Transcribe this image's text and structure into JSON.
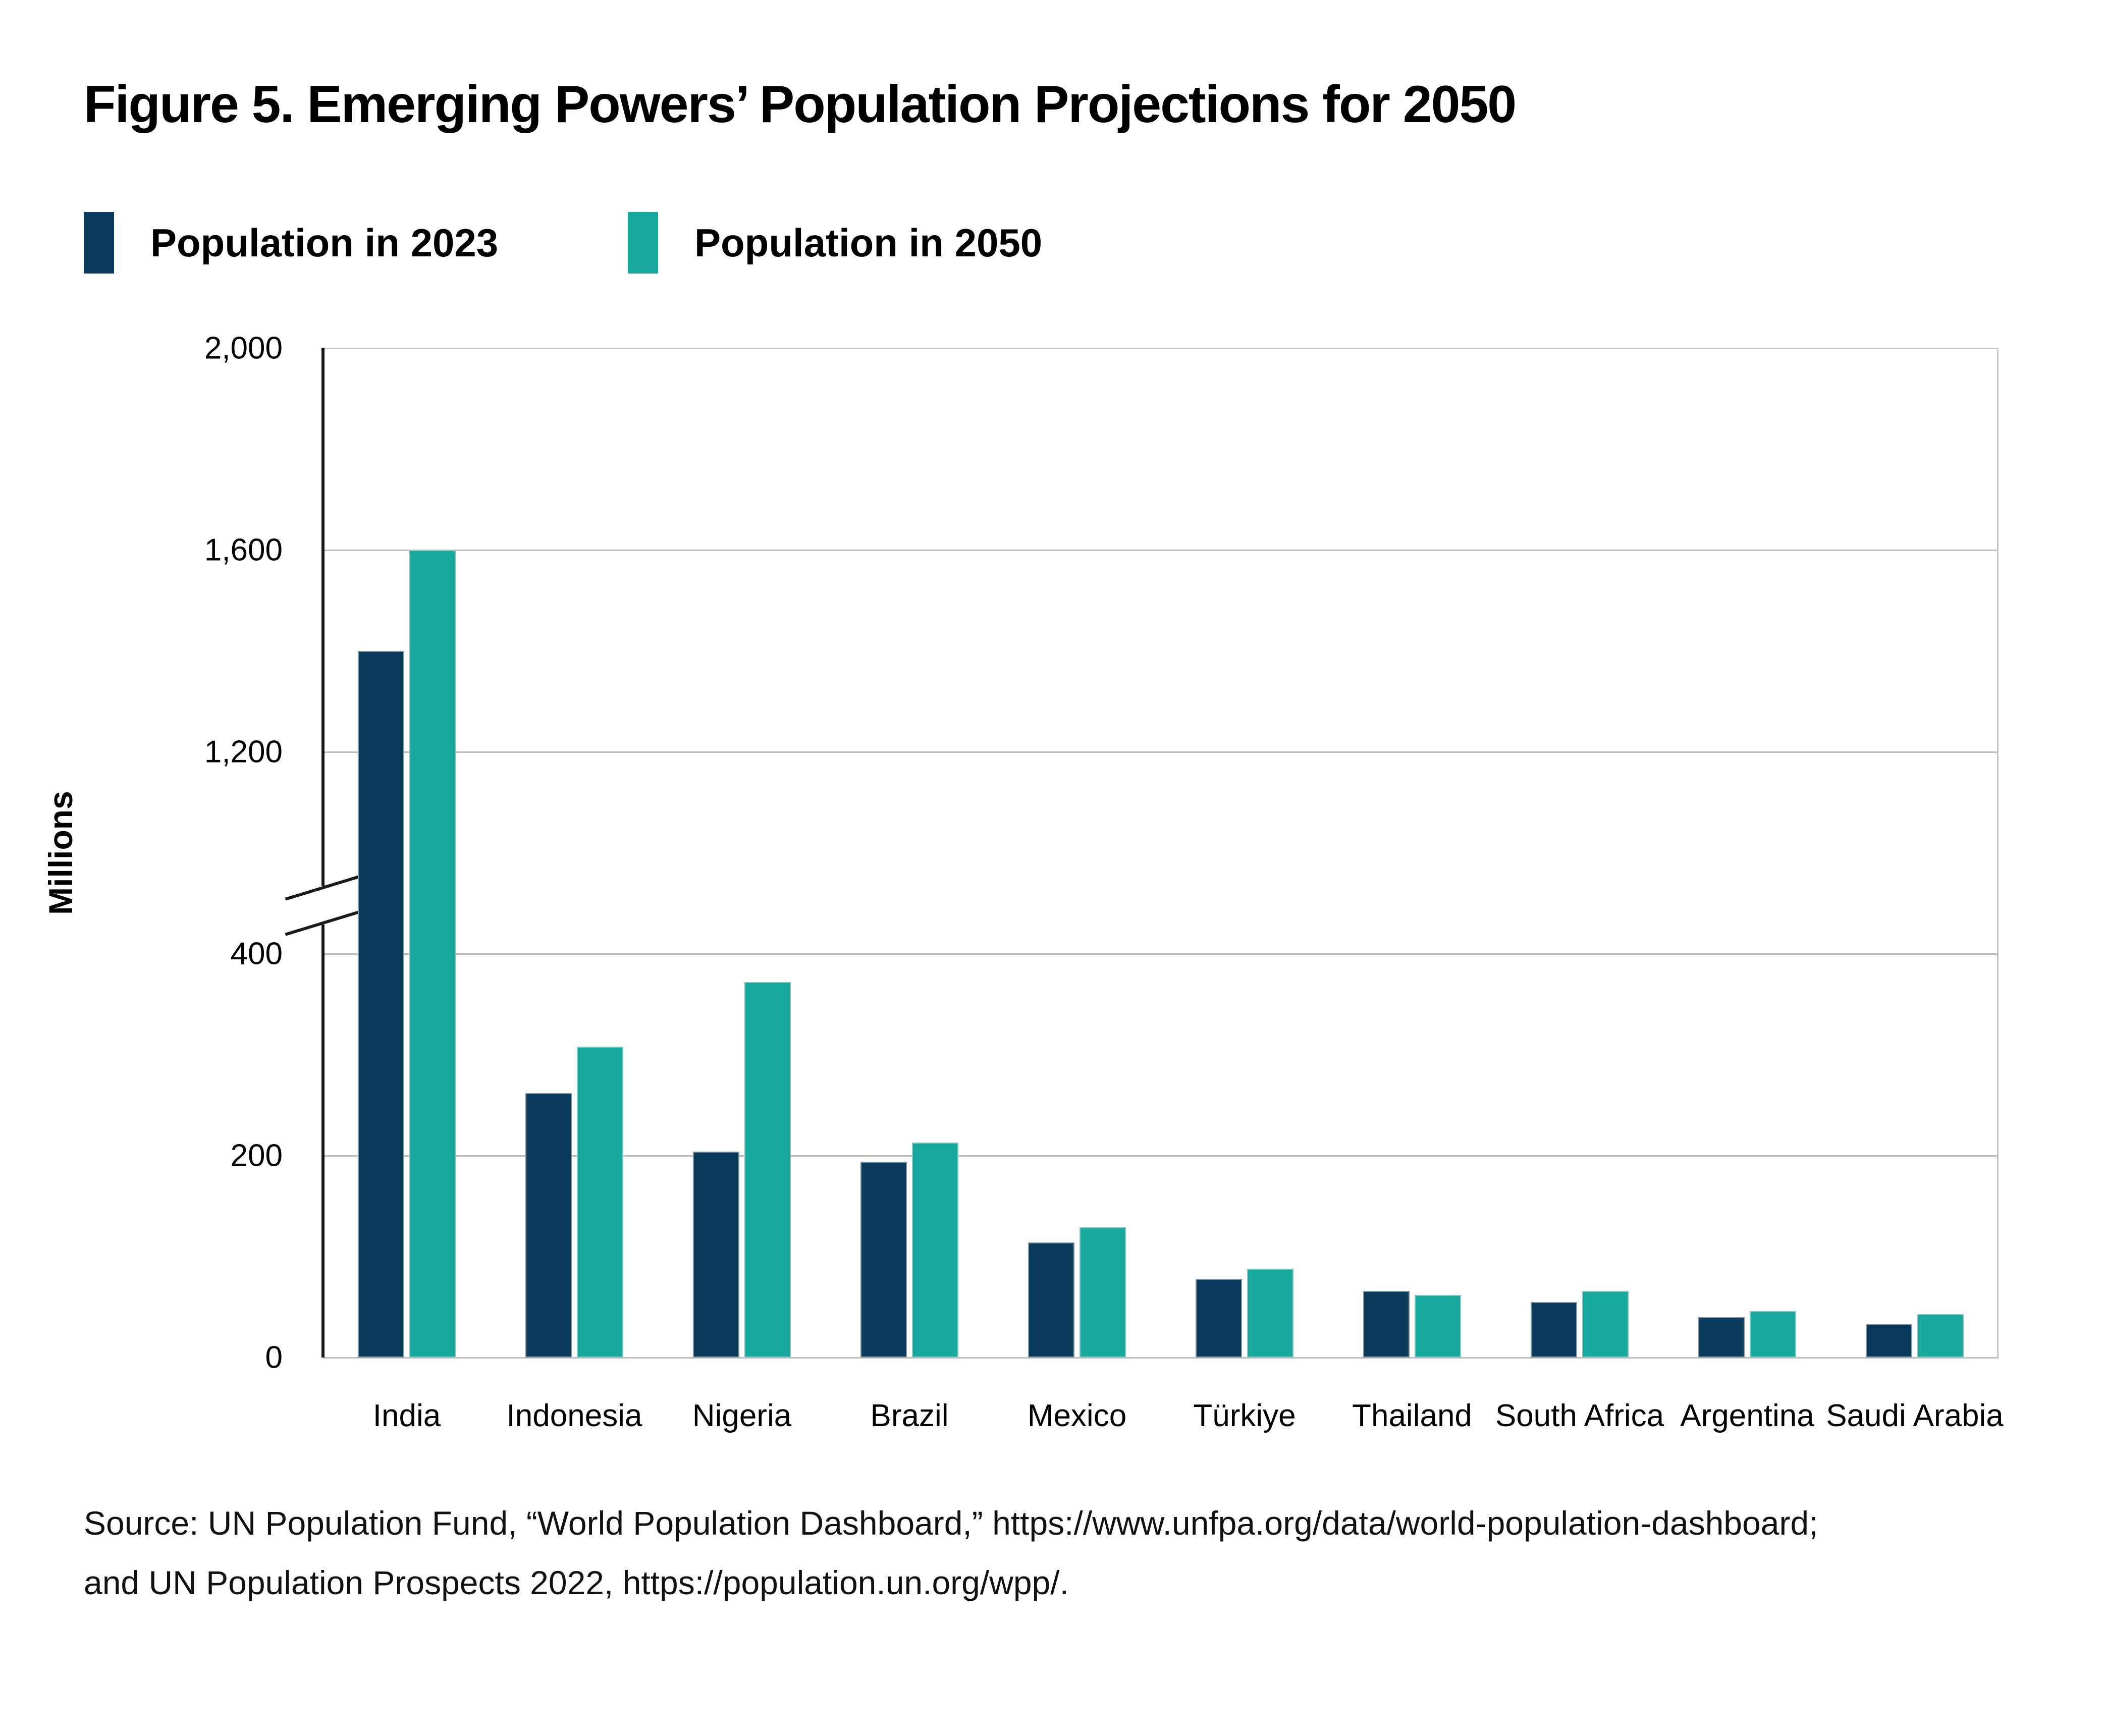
{
  "figure": {
    "title": "Figure 5. Emerging Powers’ Population Projections for 2050"
  },
  "legend": {
    "items": [
      {
        "label": "Population in 2023",
        "color": "#0A3B5C"
      },
      {
        "label": "Population in 2050",
        "color": "#16A89D"
      }
    ]
  },
  "y_axis": {
    "label": "Millions",
    "ticks": [
      "2,000",
      "1,600",
      "1,200",
      "400",
      "200",
      "0"
    ],
    "tick_values": [
      2000,
      1600,
      1200,
      400,
      200,
      0
    ],
    "axis_color": "#1a1a1a",
    "gridline_color": "#bdbdbd"
  },
  "source": {
    "line1": "Source: UN Population Fund, “World Population Dashboard,” https://www.unfpa.org/data/world-population-dashboard;",
    "line2": "and UN Population Prospects 2022,  https://population.un.org/wpp/."
  },
  "chart_data": {
    "type": "bar",
    "title": "Figure 5. Emerging Powers’ Population Projections for 2050",
    "categories": [
      "India",
      "Indonesia",
      "Nigeria",
      "Brazil",
      "Mexico",
      "Türkiye",
      "Thailand",
      "South Africa",
      "Argentina",
      "Saudi Arabia"
    ],
    "series": [
      {
        "name": "Population in 2023",
        "color": "#0A3B5C",
        "values": [
          1400,
          262,
          204,
          194,
          114,
          78,
          66,
          55,
          40,
          33
        ]
      },
      {
        "name": "Population in 2050",
        "color": "#16A89D",
        "values": [
          1600,
          308,
          372,
          213,
          129,
          88,
          62,
          66,
          46,
          43
        ]
      }
    ],
    "xlabel": "",
    "ylabel": "Millions",
    "grid": true,
    "legend_position": "top-left",
    "axis_break": {
      "lower_segment": [
        0,
        400
      ],
      "upper_segment": [
        1200,
        2000
      ],
      "lower_tick_step": 200,
      "upper_tick_step": 400
    }
  }
}
